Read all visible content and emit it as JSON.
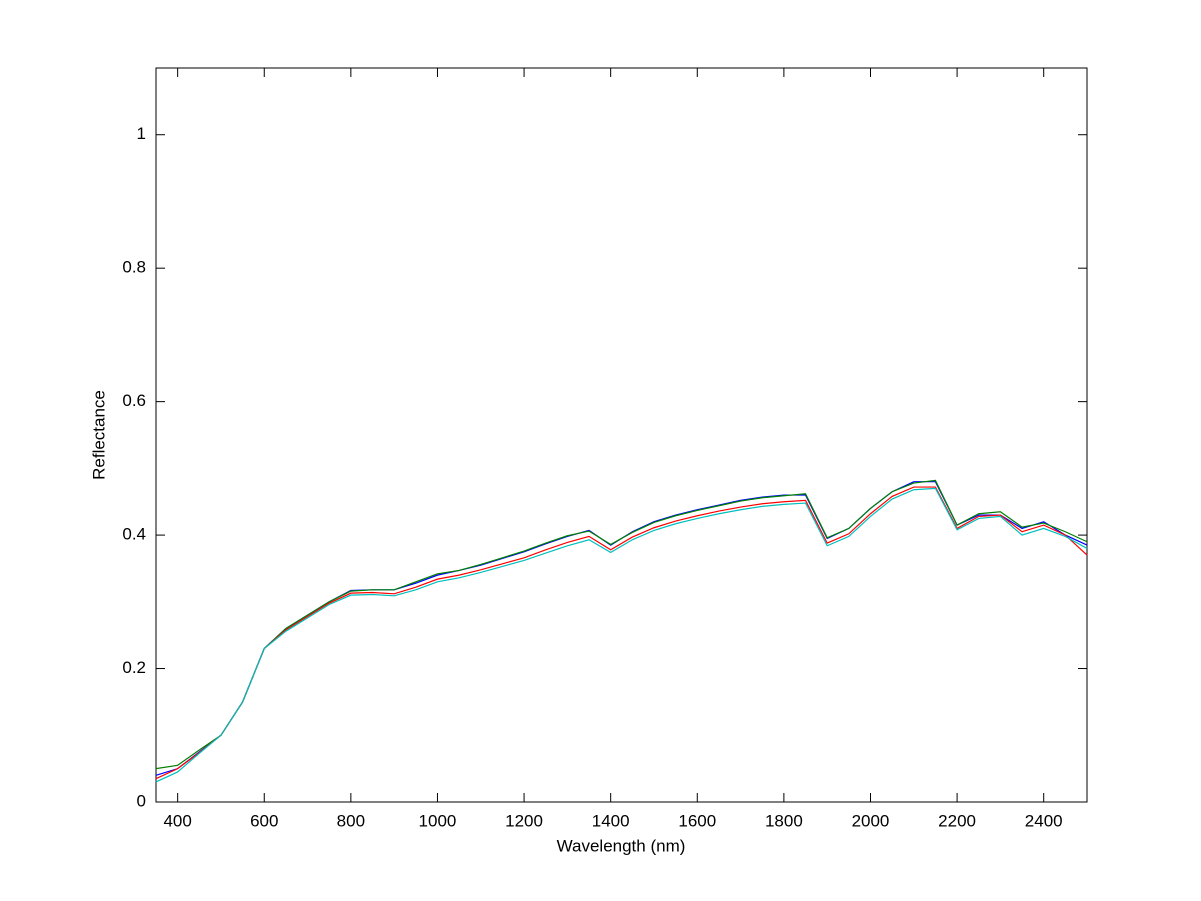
{
  "chart_data": {
    "type": "line",
    "x_label": "Wavelength (nm)",
    "y_label": "Reflectance",
    "x": [
      350,
      400,
      450,
      500,
      550,
      600,
      650,
      700,
      750,
      800,
      850,
      900,
      950,
      1000,
      1050,
      1100,
      1150,
      1200,
      1250,
      1300,
      1350,
      1400,
      1450,
      1500,
      1550,
      1600,
      1650,
      1700,
      1750,
      1800,
      1850,
      1900,
      1950,
      2000,
      2050,
      2100,
      2150,
      2200,
      2250,
      2300,
      2350,
      2400,
      2450,
      2500
    ],
    "series": [
      {
        "color": "#0000ff",
        "values": [
          0.04,
          0.05,
          0.075,
          0.1,
          0.15,
          0.23,
          0.26,
          0.28,
          0.3,
          0.317,
          0.318,
          0.318,
          0.328,
          0.34,
          0.347,
          0.355,
          0.365,
          0.375,
          0.387,
          0.398,
          0.407,
          0.385,
          0.405,
          0.42,
          0.43,
          0.438,
          0.445,
          0.452,
          0.457,
          0.46,
          0.46,
          0.395,
          0.41,
          0.44,
          0.465,
          0.48,
          0.48,
          0.415,
          0.43,
          0.43,
          0.41,
          0.42,
          0.4,
          0.385
        ]
      },
      {
        "color": "#008000",
        "values": [
          0.05,
          0.055,
          0.078,
          0.1,
          0.15,
          0.23,
          0.26,
          0.28,
          0.3,
          0.316,
          0.318,
          0.318,
          0.33,
          0.342,
          0.347,
          0.356,
          0.366,
          0.376,
          0.388,
          0.399,
          0.406,
          0.386,
          0.404,
          0.419,
          0.429,
          0.437,
          0.444,
          0.451,
          0.456,
          0.459,
          0.462,
          0.396,
          0.41,
          0.44,
          0.465,
          0.478,
          0.482,
          0.415,
          0.432,
          0.435,
          0.412,
          0.418,
          0.405,
          0.39
        ]
      },
      {
        "color": "#ff0000",
        "values": [
          0.035,
          0.05,
          0.074,
          0.1,
          0.15,
          0.23,
          0.258,
          0.278,
          0.298,
          0.313,
          0.314,
          0.312,
          0.322,
          0.334,
          0.34,
          0.348,
          0.357,
          0.366,
          0.378,
          0.389,
          0.398,
          0.378,
          0.397,
          0.411,
          0.421,
          0.429,
          0.436,
          0.442,
          0.447,
          0.45,
          0.452,
          0.388,
          0.402,
          0.432,
          0.458,
          0.472,
          0.472,
          0.41,
          0.428,
          0.43,
          0.405,
          0.415,
          0.4,
          0.37
        ]
      },
      {
        "color": "#00bfbf",
        "values": [
          0.03,
          0.045,
          0.073,
          0.1,
          0.15,
          0.23,
          0.256,
          0.276,
          0.296,
          0.31,
          0.311,
          0.309,
          0.318,
          0.33,
          0.336,
          0.344,
          0.353,
          0.362,
          0.373,
          0.384,
          0.393,
          0.374,
          0.393,
          0.407,
          0.417,
          0.425,
          0.432,
          0.438,
          0.443,
          0.446,
          0.448,
          0.384,
          0.398,
          0.428,
          0.454,
          0.468,
          0.47,
          0.408,
          0.425,
          0.428,
          0.4,
          0.41,
          0.398,
          0.38
        ]
      }
    ],
    "xlim": [
      350,
      2500
    ],
    "xticks": [
      400,
      600,
      800,
      1000,
      1200,
      1400,
      1600,
      1800,
      2000,
      2200,
      2400
    ],
    "ylim": [
      0,
      1.1
    ],
    "yticks": [
      0,
      0.2,
      0.4,
      0.6,
      0.8,
      1
    ],
    "grid": false
  }
}
